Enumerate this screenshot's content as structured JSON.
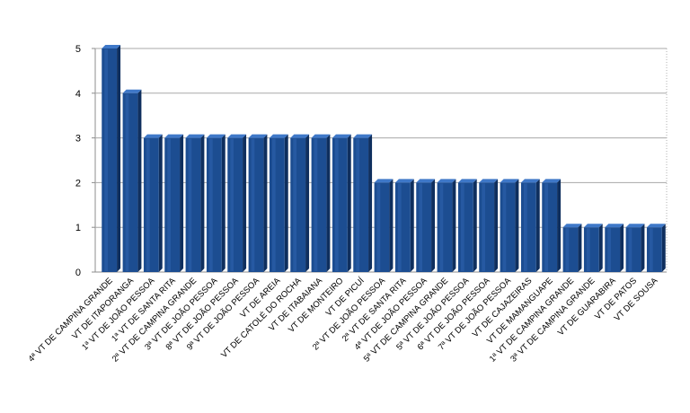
{
  "chart_data": {
    "type": "bar",
    "title": "",
    "xlabel": "",
    "ylabel": "",
    "ylim": [
      0,
      5
    ],
    "yticks": [
      "0",
      "1",
      "2",
      "3",
      "4",
      "5"
    ],
    "grid": true,
    "bar_color": "#1c4d91",
    "bar_top_color": "#3f78c8",
    "bar_side_color": "#0f2f5e",
    "categories": [
      "4ª VT DE CAMPINA GRANDE",
      "VT DE ITAPORANGA",
      "1ª VT DE JOÃO PESSOA",
      "1ª VT DE SANTA RITA",
      "2ª VT DE CAMPINA GRANDE",
      "3ª VT DE JOÃO PESSOA",
      "8ª VT DE JOÃO PESSOA",
      "9ª VT DE JOÃO PESSOA",
      "VT DE AREIA",
      "VT DE CATOLÉ DO ROCHA",
      "VT DE ITABAIANA",
      "VT DE MONTEIRO",
      "VT DE PICUÍ",
      "2ª VT DE JOÃO PESSOA",
      "2ª VT DE SANTA RITA",
      "4ª VT DE JOÃO PESSOA",
      "5ª VT DE CAMPINA GRANDE",
      "5ª VT DE JOÃO PESSOA",
      "6ª VT DE JOÃO PESSOA",
      "7ª VT DE JOÃO PESSOA",
      "VT DE CAJAZEIRAS",
      "VT DE MAMANGUAPE",
      "1ª VT DE CAMPINA GRANDE",
      "3ª VT DE CAMPINA GRANDE",
      "VT DE GUARABIRA",
      "VT DE PATOS",
      "VT DE SOUSA"
    ],
    "values": [
      5,
      4,
      3,
      3,
      3,
      3,
      3,
      3,
      3,
      3,
      3,
      3,
      3,
      2,
      2,
      2,
      2,
      2,
      2,
      2,
      2,
      2,
      1,
      1,
      1,
      1,
      1
    ]
  }
}
